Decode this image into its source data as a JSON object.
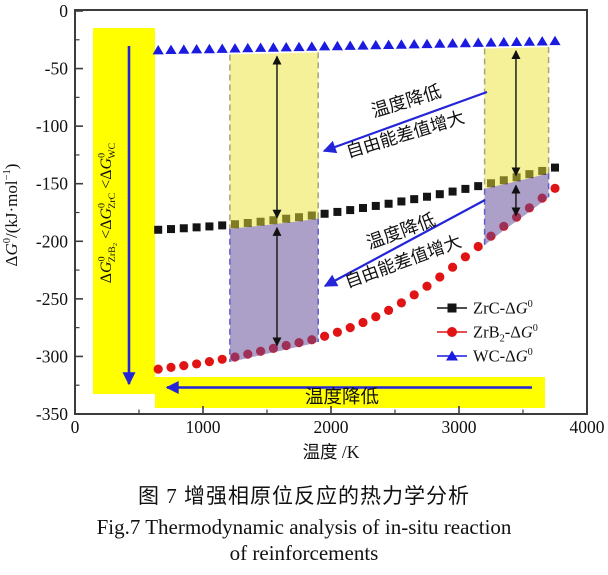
{
  "figure": {
    "caption_zh": "图 7  增强相原位反应的热力学分析",
    "caption_en_1": "Fig.7  Thermodynamic analysis of in-situ reaction",
    "caption_en_2": "of reinforcements"
  },
  "chart_data": {
    "type": "scatter",
    "title": "",
    "xlabel": "温度 /K",
    "ylabel": "ΔG⁰/(kJ·mol⁻¹)",
    "ylabel_tokens": [
      {
        "t": "Δ"
      },
      {
        "i": "G"
      },
      {
        "sup": "0"
      },
      {
        "t": "/(kJ·mol"
      },
      {
        "sup": "−1"
      },
      {
        "t": ")"
      }
    ],
    "xlim": [
      0,
      4000
    ],
    "ylim": [
      -350,
      0
    ],
    "x_tick_labels": [
      "0",
      "1000",
      "2000",
      "3000",
      "4000"
    ],
    "x_major_ticks": [
      0,
      1000,
      2000,
      3000,
      4000
    ],
    "x_minor_ticks": [
      500,
      1500,
      2500,
      3500
    ],
    "y_tick_labels": [
      "0",
      "-50",
      "-100",
      "-150",
      "-200",
      "-250",
      "-300",
      "-350"
    ],
    "y_major_ticks": [
      0,
      -50,
      -100,
      -150,
      -200,
      -250,
      -300,
      -350
    ],
    "y_minor_ticks": [
      -25,
      -75,
      -125,
      -175,
      -225,
      -275,
      -325
    ],
    "grid": false,
    "x": [
      650,
      750,
      850,
      950,
      1050,
      1150,
      1250,
      1350,
      1450,
      1550,
      1650,
      1750,
      1850,
      1950,
      2050,
      2150,
      2250,
      2350,
      2450,
      2550,
      2650,
      2750,
      2850,
      2950,
      3050,
      3150,
      3250,
      3350,
      3450,
      3550,
      3650,
      3750
    ],
    "series": [
      {
        "id": "ZrC",
        "name": "ZrC-ΔG⁰",
        "marker": "square",
        "color": "#141414",
        "label_tokens": [
          {
            "t": "ZrC-Δ"
          },
          {
            "i": "G"
          },
          {
            "sup": "0"
          }
        ],
        "values": [
          -190,
          -189.4,
          -188.7,
          -187.9,
          -187.1,
          -186.2,
          -185.2,
          -184.1,
          -183,
          -181.7,
          -180.4,
          -179.1,
          -177.6,
          -176.1,
          -174.5,
          -172.9,
          -171.1,
          -169.3,
          -167.4,
          -165.4,
          -163.4,
          -161.3,
          -159.1,
          -156.8,
          -154.5,
          -152.1,
          -149.6,
          -147,
          -144.4,
          -141.7,
          -138.9,
          -136
        ]
      },
      {
        "id": "ZrB2",
        "name": "ZrB₂-ΔG⁰",
        "marker": "circle",
        "color": "#e01414",
        "label_tokens": [
          {
            "t": "ZrB"
          },
          {
            "sub": "2"
          },
          {
            "t": "-Δ"
          },
          {
            "i": "G"
          },
          {
            "sup": "0"
          }
        ],
        "values": [
          -311,
          -309.5,
          -308,
          -306.5,
          -304.5,
          -302.5,
          -300.5,
          -298,
          -295.5,
          -293,
          -290.5,
          -288,
          -285.5,
          -282.5,
          -279,
          -275,
          -270.5,
          -265.5,
          -260,
          -253.5,
          -246.5,
          -239,
          -231,
          -222.5,
          -213.5,
          -204.5,
          -195.5,
          -187,
          -179,
          -171,
          -162.5,
          -154
        ]
      },
      {
        "id": "WC",
        "name": "WC-ΔG⁰",
        "marker": "triangle",
        "color": "#1a1ae0",
        "label_tokens": [
          {
            "t": "WC-Δ"
          },
          {
            "i": "G"
          },
          {
            "sup": "0"
          }
        ],
        "values": [
          -34,
          -33.7,
          -33.5,
          -33.2,
          -33,
          -32.7,
          -32.4,
          -32.2,
          -31.9,
          -31.7,
          -31.4,
          -31.2,
          -30.9,
          -30.6,
          -30.4,
          -30.1,
          -29.9,
          -29.6,
          -29.4,
          -29.1,
          -28.8,
          -28.6,
          -28.3,
          -28.1,
          -27.8,
          -27.5,
          -27.3,
          -27,
          -26.8,
          -26.5,
          -26.3,
          -26
        ]
      }
    ],
    "bands": [
      {
        "x_range": [
          1210,
          1900
        ],
        "top": "WC",
        "bottom": "ZrC",
        "fill": "rgba(235,228,50,0.50)",
        "edge_color": "#a8a478"
      },
      {
        "x_range": [
          1210,
          1900
        ],
        "top": "ZrC",
        "bottom": "ZrB2",
        "fill": "rgba(98,72,150,0.52)",
        "edge_color": "#5d5dcf"
      },
      {
        "x_range": [
          3200,
          3700
        ],
        "top": "WC",
        "bottom": "ZrC",
        "fill": "rgba(235,228,50,0.50)",
        "edge_color": "#a8a478"
      },
      {
        "x_range": [
          3200,
          3700
        ],
        "top": "ZrC",
        "bottom": "ZrB2",
        "fill": "rgba(98,72,150,0.52)",
        "edge_color": "#5d5dcf"
      }
    ],
    "gap_arrows": [
      {
        "x": 1578,
        "from": "WC",
        "to": "ZrC"
      },
      {
        "x": 1578,
        "from": "ZrC",
        "to": "ZrB2"
      },
      {
        "x": 3445,
        "from": "WC",
        "to": "ZrC"
      },
      {
        "x": 3445,
        "from": "ZrC",
        "to": "ZrB2"
      }
    ],
    "legend": {
      "position": "lower-right"
    }
  },
  "annotations": {
    "upper": {
      "line1": "温度降低",
      "line2": "自由能差值增大"
    },
    "lower": {
      "line1": "温度降低",
      "line2": "自由能差值增大"
    },
    "bottom_bar_label": "温度降低",
    "left_bar": {
      "text": "ΔG⁰ZrB₂ < ΔG⁰ZrC < ΔG⁰WC",
      "tokens": [
        {
          "t": "Δ"
        },
        {
          "i": "G"
        },
        {
          "sup": "0",
          "sub": "ZrB₂"
        },
        {
          "t": " <"
        },
        {
          "t": "Δ"
        },
        {
          "i": "G"
        },
        {
          "sup": "0",
          "sub": "ZrC"
        },
        {
          "t": " <"
        },
        {
          "t": "Δ"
        },
        {
          "i": "G"
        },
        {
          "sup": "0",
          "sub": "WC"
        }
      ]
    }
  },
  "colors": {
    "highlight_yellow": "#ffff00",
    "band_yellow": "#f2ee9e",
    "band_purple": "#b3a6c9",
    "arrow_blue": "#2424d8",
    "axis": "#3c3c3c"
  }
}
